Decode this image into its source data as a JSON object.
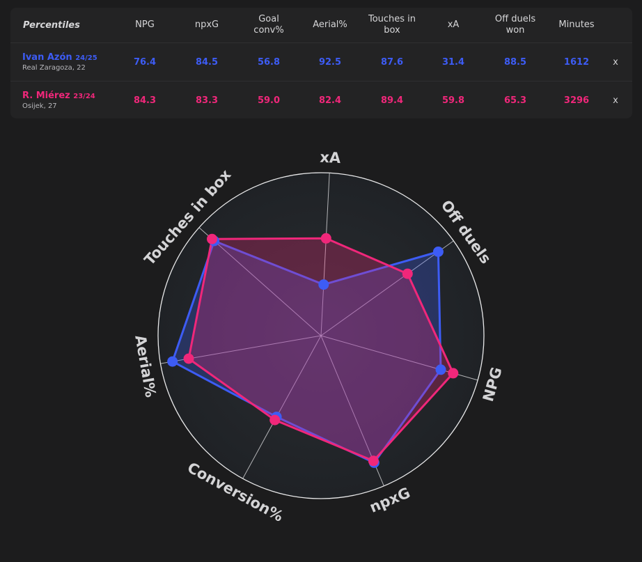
{
  "table": {
    "header_label": "Percentiles",
    "columns": [
      {
        "key": "npg",
        "label": "NPG"
      },
      {
        "key": "npxg",
        "label": "npxG"
      },
      {
        "key": "goal_conv",
        "label": "Goal\nconv%"
      },
      {
        "key": "aerial",
        "label": "Aerial%"
      },
      {
        "key": "touches_box",
        "label": "Touches in\nbox"
      },
      {
        "key": "xa",
        "label": "xA"
      },
      {
        "key": "off_duels",
        "label": "Off duels\nwon"
      },
      {
        "key": "minutes",
        "label": "Minutes"
      }
    ],
    "players": [
      {
        "name": "Ivan Azón",
        "season": "24/25",
        "club": "Real Zaragoza, 22",
        "color": "#3d5cf5",
        "values": [
          "76.4",
          "84.5",
          "56.8",
          "92.5",
          "87.6",
          "31.4",
          "88.5",
          "1612"
        ],
        "remove_label": "x"
      },
      {
        "name": "R. Miérez",
        "season": "23/24",
        "club": "Osijek, 27",
        "color": "#f0277a",
        "values": [
          "84.3",
          "83.3",
          "59.0",
          "82.4",
          "89.4",
          "59.8",
          "65.3",
          "3296"
        ],
        "remove_label": "x"
      }
    ]
  },
  "chart_data": {
    "type": "radar",
    "axes": [
      "xA",
      "Off duels",
      "NPG",
      "npxG",
      "Conversion%",
      "Aerial%",
      "Touches in box"
    ],
    "range": [
      0,
      100
    ],
    "series": [
      {
        "name": "Ivan Azón 24/25",
        "color": "#3d5cf5",
        "values": [
          31.4,
          88.5,
          76.4,
          84.5,
          56.8,
          92.5,
          87.6
        ]
      },
      {
        "name": "R. Miérez 23/24",
        "color": "#f0277a",
        "values": [
          59.8,
          65.3,
          84.3,
          83.3,
          59.0,
          82.4,
          89.4
        ]
      }
    ]
  }
}
